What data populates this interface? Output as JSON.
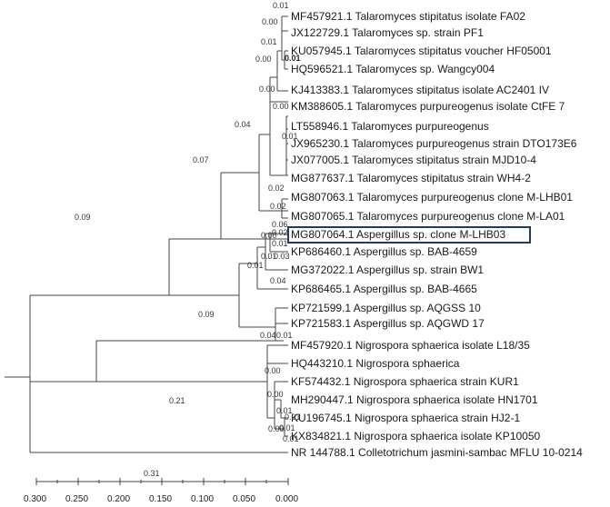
{
  "tree": {
    "leaves": [
      "MF457921.1 Talaromyces stipitatus isolate FA02",
      "JX122729.1 Talaromyces sp. strain PF1",
      "KU057945.1 Talaromyces stipitatus voucher HF05001",
      "HQ596521.1 Talaromyces sp. Wangcy004",
      "KJ413383.1 Talaromyces stipitatus isolate AC2401 IV",
      "KM388605.1 Talaromyces purpureogenus isolate CtFE 7",
      "LT558946.1 Talaromyces purpureogenus",
      "JX965230.1 Talaromyces purpureogenus strain DTO173E6",
      "JX077005.1 Talaromyces stipitatus strain MJD10-4",
      "MG877637.1 Talaromyces stipitatus strain WH4-2",
      "MG807063.1 Talaromyces purpureogenus clone M-LHB01",
      "MG807065.1 Talaromyces purpureogenus clone M-LA01",
      "MG807064.1 Aspergillus sp. clone M-LHB03",
      "KP686460.1 Aspergillus sp. BAB-4659",
      "MG372022.1 Aspergillus sp. strain BW1",
      "KP686465.1 Aspergillus sp. BAB-4665",
      "KP721599.1 Aspergillus sp. AQGSS 10",
      "KP721583.1 Aspergillus sp. AQGWD 17",
      "MF457920.1 Nigrospora sphaerica isolate L18/35",
      "HQ443210.1 Nigrospora sphaerica",
      "KF574432.1 Nigrospora sphaerica strain KUR1",
      "MH290447.1 Nigrospora sphaerica isolate HN1701",
      "KU196745.1 Nigrospora sphaerica strain HJ2-1",
      "KX834821.1 Nigrospora sphaerica isolate KP10050",
      "NR 144788.1 Colletotrichum jasmini-sambac MFLU 10-0214"
    ],
    "highlighted_leaf": "MG807064.1 Aspergillus sp. clone M-LHB03",
    "branch_labels": {
      "root_big": "0.21",
      "root_talaro_asp": "0.09",
      "talaro_stem": "0.07",
      "talaro_inner": "0.04",
      "asp_stem": "0.09",
      "nr_branch": "0.31",
      "l01": "0.01",
      "l02": "0.00",
      "l03": "0.01",
      "l04": "0.01",
      "l05": "0.00",
      "l06": "0.00",
      "l07": "0.00",
      "l08": "0.01",
      "l09": "0.02",
      "l10": "0.02",
      "l11": "0.06",
      "l12": "0.02",
      "l13": "0.00",
      "l14": "0.01",
      "l15": "0.01",
      "l16": "0.03",
      "l17": "0.04",
      "l18": "0.04",
      "l19": "0.01",
      "l20": "0.00",
      "l21": "0.00",
      "l22": "0.01",
      "l23": "0.01",
      "l24": "0.01",
      "l25": "0.00",
      "l26": "0.01"
    },
    "axis_ticks": [
      "0.300",
      "0.250",
      "0.200",
      "0.150",
      "0.100",
      "0.050",
      "0.000"
    ]
  }
}
